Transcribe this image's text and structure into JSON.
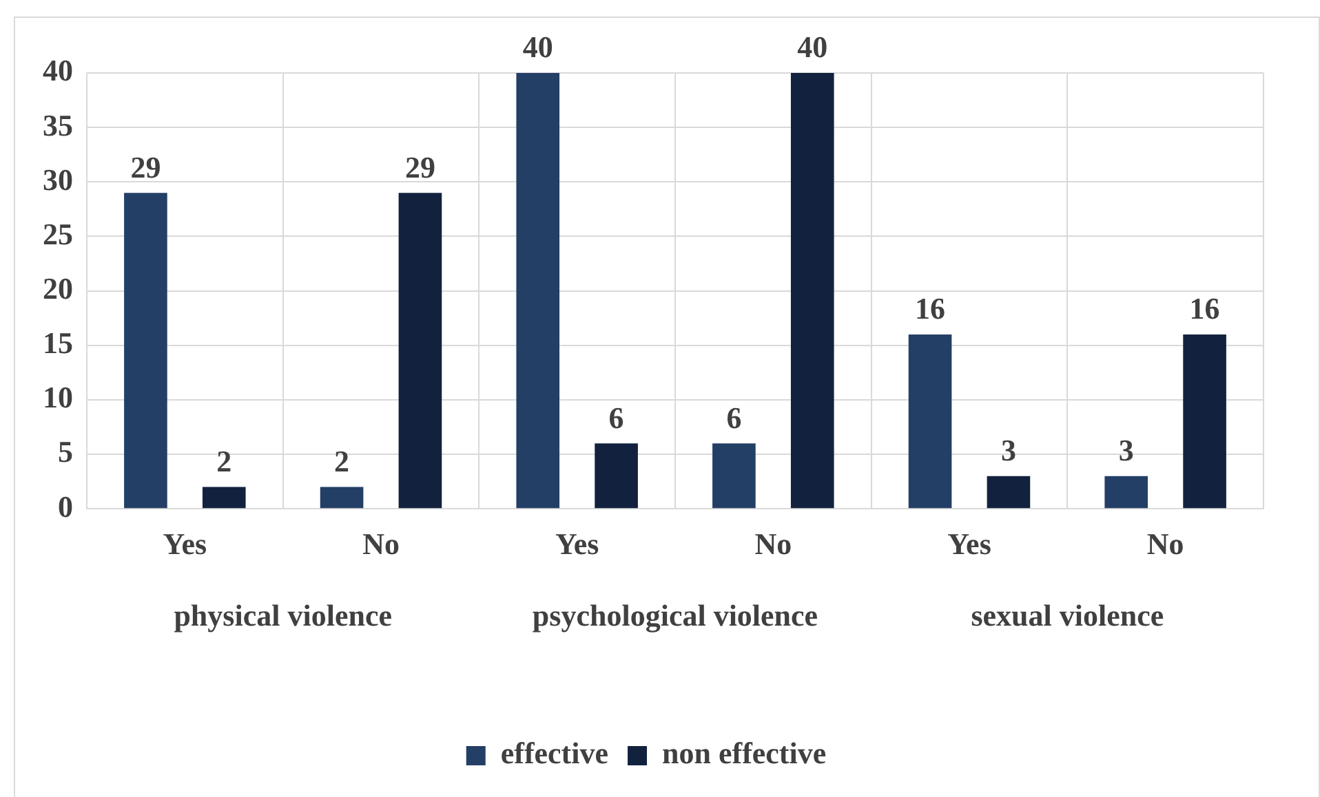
{
  "chart_data": {
    "type": "bar",
    "categories": [
      "Yes",
      "No",
      "Yes",
      "No",
      "Yes",
      "No"
    ],
    "series": [
      {
        "name": "effective",
        "color": "#243f66",
        "values": [
          29,
          2,
          40,
          6,
          16,
          3
        ]
      },
      {
        "name": "non effective",
        "color": "#12223e",
        "values": [
          2,
          29,
          6,
          40,
          3,
          16
        ]
      }
    ],
    "ylim": [
      0,
      40
    ],
    "yticks": [
      0,
      5,
      10,
      15,
      20,
      25,
      30,
      35,
      40
    ],
    "grid": true,
    "legend": "bottom",
    "data_labels": true,
    "annotations": [
      "physical violence",
      "psychological violence",
      "sexual violence"
    ]
  }
}
